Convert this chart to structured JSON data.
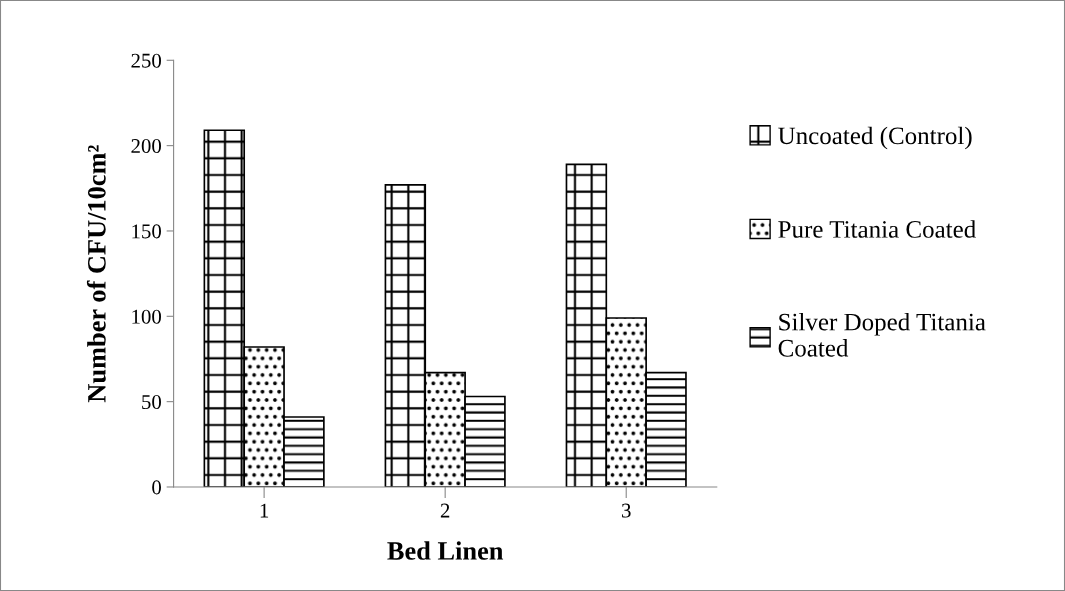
{
  "chart_data": {
    "type": "bar",
    "xlabel": "Bed Linen",
    "ylabel": "Number of CFU/10cm²",
    "categories": [
      "1",
      "2",
      "3"
    ],
    "series": [
      {
        "name": "Uncoated (Control)",
        "color": "#000000",
        "values": [
          209,
          177,
          189
        ]
      },
      {
        "name": "Pure Titania Coated",
        "color": "#000000",
        "values": [
          82,
          67,
          99
        ]
      },
      {
        "name": "Silver Doped Titania Coated",
        "color": "#000000",
        "values": [
          41,
          53,
          67
        ]
      }
    ],
    "ylim": [
      0,
      250
    ],
    "yticks": [
      0,
      50,
      100,
      150,
      200,
      250
    ],
    "grid": false,
    "legend": "right"
  }
}
